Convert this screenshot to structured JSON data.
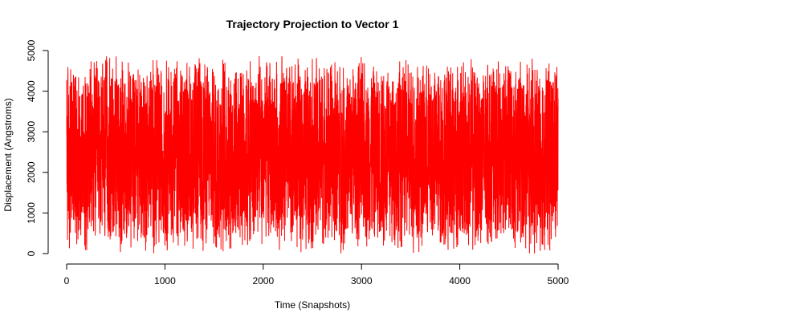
{
  "chart_data": {
    "type": "line",
    "title": "Trajectory Projection to Vector 1",
    "xlabel": "Time (Snapshots)",
    "ylabel": "Displacement (Angstroms)",
    "xlim": [
      0,
      5000
    ],
    "ylim": [
      0,
      5000
    ],
    "x_ticks": [
      0,
      1000,
      2000,
      3000,
      4000,
      5000
    ],
    "y_ticks": [
      0,
      1000,
      2000,
      3000,
      4000,
      5000
    ],
    "grid": false,
    "legend": "none",
    "series": [
      {
        "color": "#ff0000",
        "x_range": [
          0,
          5000
        ],
        "n_points": 5000,
        "y_min": 0,
        "y_max": 4870,
        "y_mean": 2450,
        "description_of_shape": "dense noisy oscillation filling 0-4870 throughout"
      }
    ]
  }
}
